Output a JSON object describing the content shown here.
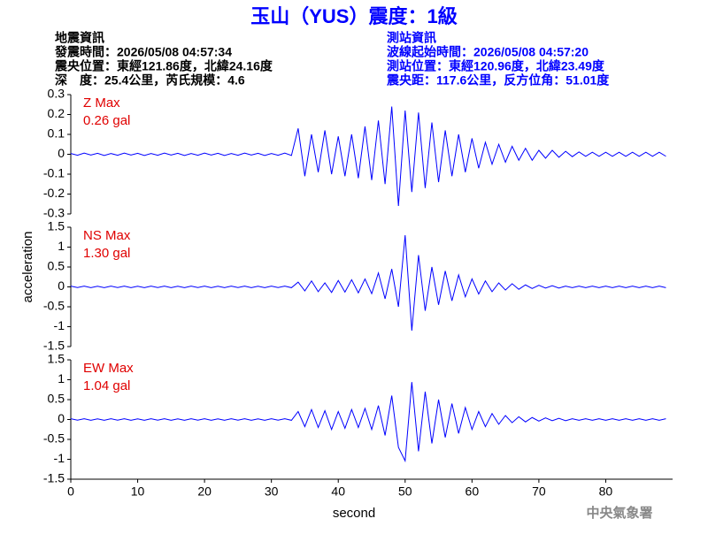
{
  "header": {
    "title": "玉山（YUS）震度：1級",
    "left": [
      "地震資訊",
      "發震時間：2026/05/08 04:57:34",
      "震央位置：東經121.86度，北緯24.16度",
      "深　度：25.4公里，芮氏規模：4.6"
    ],
    "right": [
      "測站資訊",
      "波線起始時間：2026/05/08 04:57:20",
      "測站位置：東經120.96度，北緯23.49度",
      "震央距：117.6公里，反方位角：51.01度"
    ]
  },
  "y_label": "acceleration",
  "footer": "中央氣象署",
  "chart_data": [
    {
      "type": "line",
      "color": "#0000ff",
      "label": "Z Max",
      "max_label": "0.26 gal",
      "xlim": [
        0,
        90
      ],
      "ylim": [
        -0.3,
        0.3
      ],
      "yticks": [
        0.3,
        0.2,
        0.1,
        0,
        -0.1,
        -0.2,
        -0.3
      ],
      "x": [
        0,
        1,
        2,
        3,
        4,
        5,
        6,
        7,
        8,
        9,
        10,
        11,
        12,
        13,
        14,
        15,
        16,
        17,
        18,
        19,
        20,
        21,
        22,
        23,
        24,
        25,
        26,
        27,
        28,
        29,
        30,
        31,
        32,
        33,
        34,
        35,
        36,
        37,
        38,
        39,
        40,
        41,
        42,
        43,
        44,
        45,
        46,
        47,
        48,
        49,
        50,
        51,
        52,
        53,
        54,
        55,
        56,
        57,
        58,
        59,
        60,
        61,
        62,
        63,
        64,
        65,
        66,
        67,
        68,
        69,
        70,
        71,
        72,
        73,
        74,
        75,
        76,
        77,
        78,
        79,
        80,
        81,
        82,
        83,
        84,
        85,
        86,
        87,
        88,
        89
      ],
      "values": [
        0.004,
        -0.005,
        0.006,
        -0.004,
        0.005,
        -0.006,
        0.004,
        -0.005,
        0.006,
        -0.004,
        0.005,
        -0.006,
        0.004,
        -0.005,
        0.006,
        -0.004,
        0.005,
        -0.006,
        0.004,
        -0.005,
        0.006,
        -0.004,
        0.005,
        -0.006,
        0.004,
        -0.005,
        0.006,
        -0.004,
        0.005,
        -0.006,
        0.004,
        -0.005,
        0.006,
        -0.006,
        0.13,
        -0.11,
        0.1,
        -0.09,
        0.12,
        -0.1,
        0.09,
        -0.11,
        0.1,
        -0.12,
        0.14,
        -0.13,
        0.17,
        -0.15,
        0.24,
        -0.26,
        0.22,
        -0.19,
        0.21,
        -0.17,
        0.16,
        -0.14,
        0.12,
        -0.11,
        0.1,
        -0.09,
        0.08,
        -0.07,
        0.06,
        -0.05,
        0.05,
        -0.04,
        0.04,
        -0.03,
        0.03,
        -0.03,
        0.02,
        -0.02,
        0.02,
        -0.015,
        0.015,
        -0.012,
        0.012,
        -0.01,
        0.01,
        -0.01,
        0.01,
        -0.01,
        0.01,
        -0.01,
        0.01,
        -0.01,
        0.01,
        -0.01,
        0.01,
        -0.01
      ]
    },
    {
      "type": "line",
      "color": "#0000ff",
      "label": "NS Max",
      "max_label": "1.30 gal",
      "xlim": [
        0,
        90
      ],
      "ylim": [
        -1.5,
        1.5
      ],
      "yticks": [
        1.5,
        1,
        0.5,
        0,
        -0.5,
        -1,
        -1.5
      ],
      "x": [
        0,
        1,
        2,
        3,
        4,
        5,
        6,
        7,
        8,
        9,
        10,
        11,
        12,
        13,
        14,
        15,
        16,
        17,
        18,
        19,
        20,
        21,
        22,
        23,
        24,
        25,
        26,
        27,
        28,
        29,
        30,
        31,
        32,
        33,
        34,
        35,
        36,
        37,
        38,
        39,
        40,
        41,
        42,
        43,
        44,
        45,
        46,
        47,
        48,
        49,
        50,
        51,
        52,
        53,
        54,
        55,
        56,
        57,
        58,
        59,
        60,
        61,
        62,
        63,
        64,
        65,
        66,
        67,
        68,
        69,
        70,
        71,
        72,
        73,
        74,
        75,
        76,
        77,
        78,
        79,
        80,
        81,
        82,
        83,
        84,
        85,
        86,
        87,
        88,
        89
      ],
      "values": [
        0.02,
        -0.015,
        0.018,
        -0.02,
        0.015,
        -0.018,
        0.02,
        -0.015,
        0.018,
        -0.02,
        0.015,
        -0.018,
        0.02,
        -0.015,
        0.018,
        -0.02,
        0.015,
        -0.018,
        0.02,
        -0.015,
        0.018,
        -0.02,
        0.015,
        -0.018,
        0.02,
        -0.015,
        0.018,
        -0.02,
        0.015,
        -0.018,
        0.02,
        -0.015,
        0.018,
        -0.02,
        0.12,
        -0.1,
        0.15,
        -0.12,
        0.1,
        -0.14,
        0.16,
        -0.13,
        0.18,
        -0.15,
        0.2,
        -0.17,
        0.35,
        -0.3,
        0.45,
        -0.5,
        1.3,
        -1.1,
        0.8,
        -0.6,
        0.5,
        -0.45,
        0.4,
        -0.35,
        0.3,
        -0.25,
        0.2,
        -0.18,
        0.15,
        -0.12,
        0.1,
        -0.08,
        0.08,
        -0.06,
        0.05,
        -0.04,
        0.04,
        -0.03,
        0.03,
        -0.03,
        0.02,
        -0.02,
        0.02,
        -0.02,
        0.02,
        -0.02,
        0.02,
        -0.02,
        0.02,
        -0.02,
        0.02,
        -0.02,
        0.02,
        -0.02,
        0.02,
        -0.02
      ]
    },
    {
      "type": "line",
      "color": "#0000ff",
      "label": "EW Max",
      "max_label": "1.04 gal",
      "xlim": [
        0,
        90
      ],
      "ylim": [
        -1.5,
        1.5
      ],
      "yticks": [
        1.5,
        1,
        0.5,
        0,
        -0.5,
        -1,
        -1.5
      ],
      "xticks": [
        0,
        10,
        20,
        30,
        40,
        50,
        60,
        70,
        80
      ],
      "xlabel": "second",
      "x": [
        0,
        1,
        2,
        3,
        4,
        5,
        6,
        7,
        8,
        9,
        10,
        11,
        12,
        13,
        14,
        15,
        16,
        17,
        18,
        19,
        20,
        21,
        22,
        23,
        24,
        25,
        26,
        27,
        28,
        29,
        30,
        31,
        32,
        33,
        34,
        35,
        36,
        37,
        38,
        39,
        40,
        41,
        42,
        43,
        44,
        45,
        46,
        47,
        48,
        49,
        50,
        51,
        52,
        53,
        54,
        55,
        56,
        57,
        58,
        59,
        60,
        61,
        62,
        63,
        64,
        65,
        66,
        67,
        68,
        69,
        70,
        71,
        72,
        73,
        74,
        75,
        76,
        77,
        78,
        79,
        80,
        81,
        82,
        83,
        84,
        85,
        86,
        87,
        88,
        89
      ],
      "values": [
        0.02,
        -0.015,
        0.018,
        -0.02,
        0.015,
        -0.018,
        0.02,
        -0.015,
        0.018,
        -0.02,
        0.015,
        -0.018,
        0.02,
        -0.015,
        0.018,
        -0.02,
        0.015,
        -0.018,
        0.02,
        -0.015,
        0.018,
        -0.02,
        0.015,
        -0.018,
        0.02,
        -0.015,
        0.018,
        -0.02,
        0.015,
        -0.018,
        0.02,
        -0.015,
        0.018,
        -0.02,
        0.2,
        -0.18,
        0.25,
        -0.2,
        0.22,
        -0.25,
        0.2,
        -0.22,
        0.25,
        -0.2,
        0.28,
        -0.25,
        0.35,
        -0.4,
        0.6,
        -0.7,
        -1.04,
        0.94,
        -0.8,
        0.7,
        -0.6,
        0.5,
        -0.45,
        0.4,
        -0.35,
        0.3,
        -0.25,
        0.2,
        -0.18,
        0.15,
        -0.12,
        0.1,
        -0.08,
        0.07,
        -0.06,
        0.05,
        -0.04,
        0.04,
        -0.03,
        0.03,
        -0.03,
        0.02,
        -0.02,
        0.02,
        -0.02,
        0.02,
        -0.02,
        0.02,
        -0.02,
        0.02,
        -0.02,
        0.02,
        -0.02,
        0.02,
        -0.02,
        0.02
      ]
    }
  ]
}
